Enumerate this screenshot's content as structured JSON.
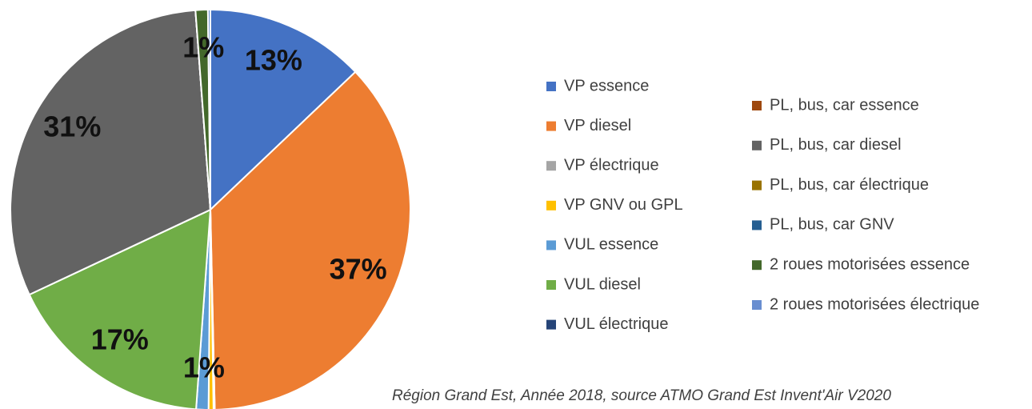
{
  "chart_data": {
    "type": "pie",
    "categories": [
      "VP essence",
      "VP diesel",
      "VP électrique",
      "VP GNV ou GPL",
      "VUL essence",
      "VUL diesel",
      "VUL électrique",
      "PL, bus, car essence",
      "PL, bus, car diesel",
      "PL, bus, car électrique",
      "PL, bus, car GNV",
      "2 roues motorisées essence",
      "2 roues motorisées électrique"
    ],
    "values": [
      13,
      37,
      0.1,
      0.4,
      1,
      17,
      0,
      0,
      31,
      0,
      0,
      1,
      0.2
    ],
    "value_labels": [
      "13%",
      "37%",
      null,
      null,
      "1%",
      "17%",
      null,
      null,
      "31%",
      null,
      null,
      "1%",
      null
    ],
    "colors": [
      "#4472c4",
      "#ed7d31",
      "#a5a5a5",
      "#ffc000",
      "#5b9bd5",
      "#70ad47",
      "#264478",
      "#9e480e",
      "#636363",
      "#997300",
      "#255e91",
      "#43682b",
      "#698ed0"
    ],
    "caption": "Région Grand Est, Année 2018,  source ATMO Grand Est Invent'Air V2020"
  }
}
